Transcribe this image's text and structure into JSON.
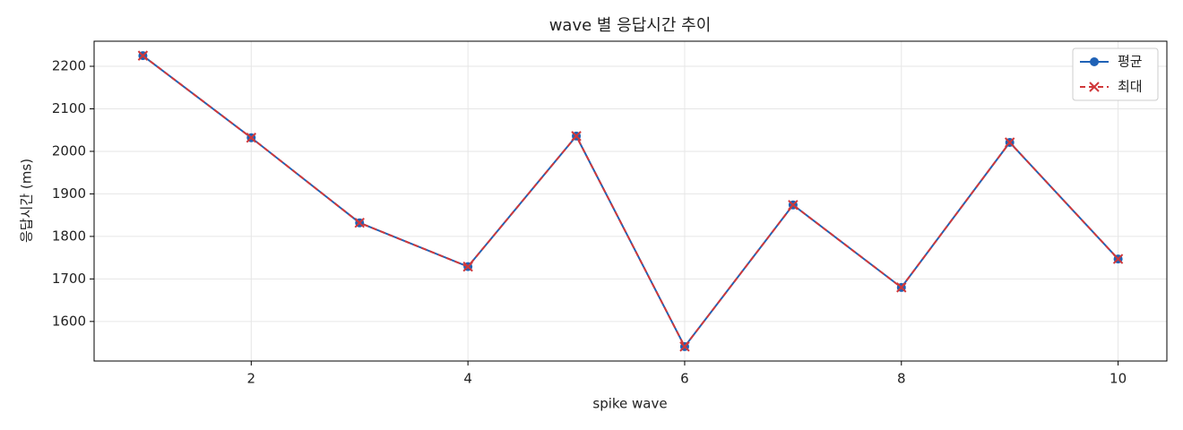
{
  "chart_data": {
    "type": "line",
    "title": "wave 별 응답시간 추이",
    "x_label": "spike wave",
    "y_label": "응답시간 (ms)",
    "x": [
      1,
      2,
      3,
      4,
      5,
      6,
      7,
      8,
      9,
      10
    ],
    "series": [
      {
        "name": "평균",
        "color": "#1f62b6",
        "marker": "o",
        "dashed": false,
        "values": [
          2225,
          2032,
          1832,
          1729,
          2036,
          1541,
          1874,
          1680,
          2021,
          1747
        ]
      },
      {
        "name": "최대",
        "color": "#d0383a",
        "marker": "x",
        "dashed": true,
        "values": [
          2225,
          2032,
          1832,
          1729,
          2036,
          1541,
          1874,
          1680,
          2021,
          1747
        ]
      }
    ],
    "xlim": [
      0.55,
      10.45
    ],
    "xticks": [
      2,
      4,
      6,
      8,
      10
    ],
    "ylim": [
      1507,
      2259
    ],
    "yticks": [
      1600,
      1700,
      1800,
      1900,
      2000,
      2100,
      2200
    ],
    "grid": true,
    "legend": "upper-right"
  }
}
